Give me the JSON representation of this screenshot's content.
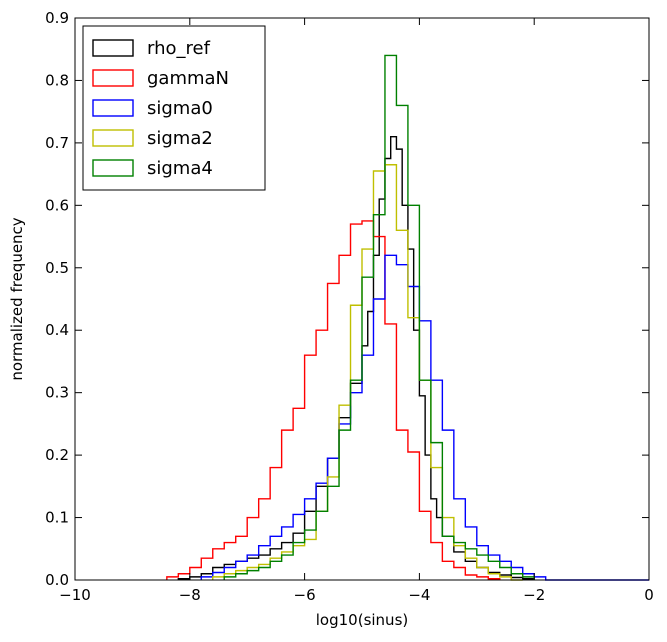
{
  "chart_data": {
    "type": "step-histogram",
    "title": "",
    "xlabel": "log10(sinus)",
    "ylabel": "normalized frequency",
    "xlim": [
      -10,
      0
    ],
    "ylim": [
      0,
      0.9
    ],
    "xticks": [
      -10,
      -8,
      -6,
      -4,
      -2,
      0
    ],
    "xtick_labels": [
      "−10",
      "−8",
      "−6",
      "−4",
      "−2",
      "0"
    ],
    "yticks": [
      0.0,
      0.1,
      0.2,
      0.3,
      0.4,
      0.5,
      0.6,
      0.7,
      0.8,
      0.9
    ],
    "ytick_labels": [
      "0.0",
      "0.1",
      "0.2",
      "0.3",
      "0.4",
      "0.5",
      "0.6",
      "0.7",
      "0.8",
      "0.9"
    ],
    "legend_position": "top-left",
    "series": [
      {
        "name": "rho_ref",
        "color": "#000000",
        "edges": [
          -8.2,
          -8.0,
          -7.8,
          -7.6,
          -7.4,
          -7.2,
          -7.0,
          -6.8,
          -6.6,
          -6.4,
          -6.2,
          -6.0,
          -5.8,
          -5.6,
          -5.4,
          -5.2,
          -5.0,
          -4.9,
          -4.8,
          -4.7,
          -4.6,
          -4.5,
          -4.4,
          -4.3,
          -4.2,
          -4.1,
          -4.0,
          -3.9,
          -3.8,
          -3.7,
          -3.6,
          -3.4,
          -3.2,
          -3.0,
          -2.8,
          -2.6,
          -2.4,
          -2.2,
          -2.0
        ],
        "values": [
          0.002,
          0.005,
          0.01,
          0.02,
          0.025,
          0.03,
          0.035,
          0.04,
          0.05,
          0.06,
          0.075,
          0.11,
          0.15,
          0.195,
          0.26,
          0.315,
          0.375,
          0.43,
          0.52,
          0.61,
          0.675,
          0.71,
          0.69,
          0.6,
          0.53,
          0.4,
          0.295,
          0.2,
          0.13,
          0.1,
          0.07,
          0.045,
          0.03,
          0.02,
          0.012,
          0.008,
          0.004,
          0.002
        ]
      },
      {
        "name": "gammaN",
        "color": "#ff0000",
        "edges": [
          -8.4,
          -8.2,
          -8.0,
          -7.8,
          -7.6,
          -7.4,
          -7.2,
          -7.0,
          -6.8,
          -6.6,
          -6.4,
          -6.2,
          -6.0,
          -5.8,
          -5.6,
          -5.4,
          -5.2,
          -5.0,
          -4.8,
          -4.6,
          -4.4,
          -4.2,
          -4.0,
          -3.8,
          -3.6,
          -3.4,
          -3.2,
          -3.0,
          -2.8,
          -2.6
        ],
        "values": [
          0.005,
          0.01,
          0.02,
          0.035,
          0.05,
          0.06,
          0.07,
          0.1,
          0.13,
          0.18,
          0.24,
          0.275,
          0.36,
          0.4,
          0.475,
          0.52,
          0.57,
          0.575,
          0.55,
          0.41,
          0.24,
          0.205,
          0.11,
          0.06,
          0.03,
          0.02,
          0.008,
          0.005,
          0.002
        ]
      },
      {
        "name": "sigma0",
        "color": "#0000ff",
        "edges": [
          -7.8,
          -7.6,
          -7.4,
          -7.2,
          -7.0,
          -6.8,
          -6.6,
          -6.4,
          -6.2,
          -6.0,
          -5.8,
          -5.6,
          -5.4,
          -5.2,
          -5.0,
          -4.8,
          -4.6,
          -4.4,
          -4.2,
          -4.0,
          -3.8,
          -3.6,
          -3.4,
          -3.2,
          -3.0,
          -2.8,
          -2.6,
          -2.4,
          -2.2,
          -2.0,
          -1.8,
          0.0
        ],
        "values": [
          0.005,
          0.012,
          0.02,
          0.03,
          0.04,
          0.055,
          0.07,
          0.085,
          0.105,
          0.13,
          0.155,
          0.195,
          0.25,
          0.3,
          0.36,
          0.45,
          0.52,
          0.505,
          0.47,
          0.415,
          0.32,
          0.24,
          0.13,
          0.085,
          0.055,
          0.04,
          0.03,
          0.02,
          0.01,
          0.005,
          0.0
        ]
      },
      {
        "name": "sigma2",
        "color": "#bfbf00",
        "edges": [
          -7.6,
          -7.4,
          -7.2,
          -7.0,
          -6.8,
          -6.6,
          -6.4,
          -6.2,
          -6.0,
          -5.8,
          -5.6,
          -5.4,
          -5.2,
          -5.0,
          -4.8,
          -4.6,
          -4.4,
          -4.2,
          -4.0,
          -3.8,
          -3.6,
          -3.4,
          -3.2,
          -3.0,
          -2.8,
          -2.6,
          -2.4,
          -2.2
        ],
        "values": [
          0.005,
          0.01,
          0.015,
          0.02,
          0.025,
          0.035,
          0.045,
          0.055,
          0.065,
          0.11,
          0.165,
          0.28,
          0.44,
          0.53,
          0.655,
          0.665,
          0.56,
          0.42,
          0.32,
          0.18,
          0.1,
          0.055,
          0.035,
          0.02,
          0.01,
          0.005,
          0.0
        ]
      },
      {
        "name": "sigma4",
        "color": "#008000",
        "edges": [
          -7.4,
          -7.2,
          -7.0,
          -6.8,
          -6.6,
          -6.4,
          -6.2,
          -6.0,
          -5.8,
          -5.6,
          -5.4,
          -5.2,
          -5.0,
          -4.8,
          -4.6,
          -4.4,
          -4.2,
          -4.0,
          -3.8,
          -3.6,
          -3.4,
          -3.2,
          -3.0,
          -2.8,
          -2.6,
          -2.4,
          -2.2,
          -2.0
        ],
        "values": [
          0.005,
          0.01,
          0.015,
          0.02,
          0.03,
          0.04,
          0.06,
          0.08,
          0.11,
          0.15,
          0.24,
          0.32,
          0.485,
          0.585,
          0.84,
          0.76,
          0.6,
          0.32,
          0.22,
          0.07,
          0.06,
          0.05,
          0.04,
          0.03,
          0.02,
          0.01,
          0.005
        ]
      }
    ]
  }
}
